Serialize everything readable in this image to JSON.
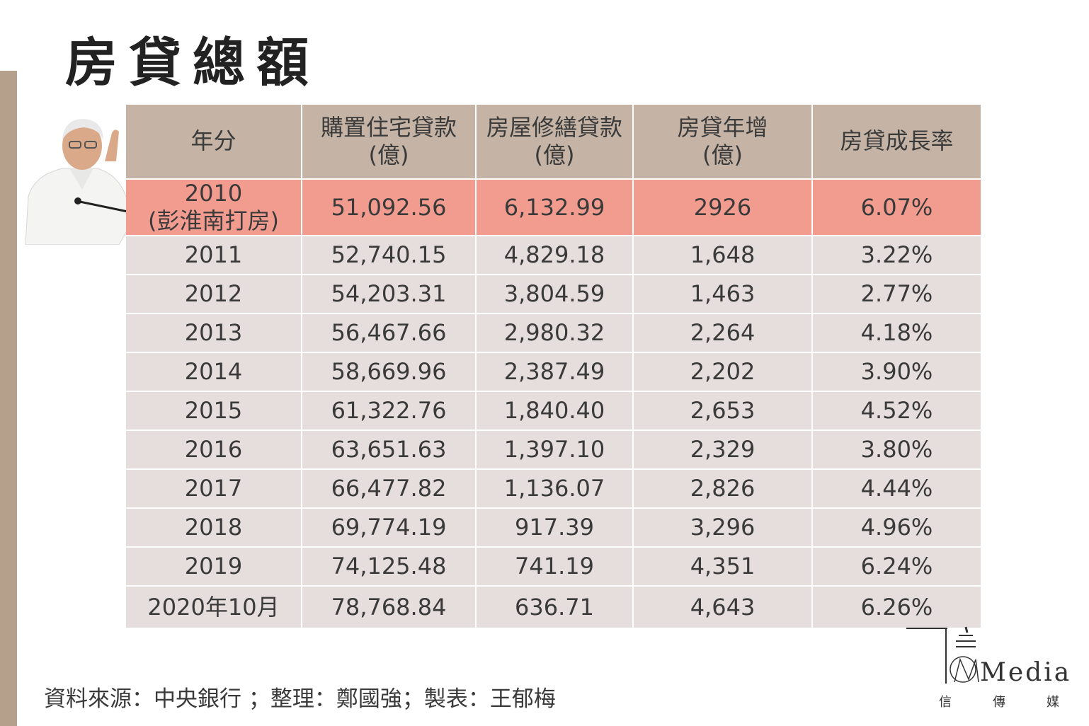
{
  "title": "房貸總額",
  "columns": [
    {
      "line1": "年分",
      "line2": ""
    },
    {
      "line1": "購置住宅貸款",
      "line2": "(億)"
    },
    {
      "line1": "房屋修繕貸款",
      "line2": "(億)"
    },
    {
      "line1": "房貸年增",
      "line2": "(億)"
    },
    {
      "line1": "房貸成長率",
      "line2": ""
    }
  ],
  "highlight_row": {
    "year_line1": "2010",
    "year_line2": "(彭淮南打房)",
    "purchase": "51,092.56",
    "repair": "6,132.99",
    "increase": "2926",
    "growth": "6.07%"
  },
  "rows": [
    {
      "year": "2011",
      "purchase": "52,740.15",
      "repair": "4,829.18",
      "increase": "1,648",
      "growth": "3.22%"
    },
    {
      "year": "2012",
      "purchase": "54,203.31",
      "repair": "3,804.59",
      "increase": "1,463",
      "growth": "2.77%"
    },
    {
      "year": "2013",
      "purchase": "56,467.66",
      "repair": "2,980.32",
      "increase": "2,264",
      "growth": "4.18%"
    },
    {
      "year": "2014",
      "purchase": "58,669.96",
      "repair": "2,387.49",
      "increase": "2,202",
      "growth": "3.90%"
    },
    {
      "year": "2015",
      "purchase": "61,322.76",
      "repair": "1,840.40",
      "increase": "2,653",
      "growth": "4.52%"
    },
    {
      "year": "2016",
      "purchase": "63,651.63",
      "repair": "1,397.10",
      "increase": "2,329",
      "growth": "3.80%"
    },
    {
      "year": "2017",
      "purchase": "66,477.82",
      "repair": "1,136.07",
      "increase": "2,826",
      "growth": "4.44%"
    },
    {
      "year": "2018",
      "purchase": "69,774.19",
      "repair": "917.39",
      "increase": "3,296",
      "growth": "4.96%"
    },
    {
      "year": "2019",
      "purchase": "74,125.48",
      "repair": "741.19",
      "increase": "4,351",
      "growth": "6.24%"
    },
    {
      "year": "2020年10月",
      "purchase": "78,768.84",
      "repair": "636.71",
      "increase": "4,643",
      "growth": "6.26%"
    }
  ],
  "footer": "資料來源：中央銀行 ；整理：鄭國強；製表：王郁梅",
  "logo": {
    "text": "Media",
    "sub": [
      "信",
      "傳",
      "媒"
    ]
  },
  "colors": {
    "header_bg": "#c5b4a5",
    "row_bg": "#e5dedc",
    "highlight_bg": "#f29c90",
    "accent_bar": "#b5a08c"
  }
}
